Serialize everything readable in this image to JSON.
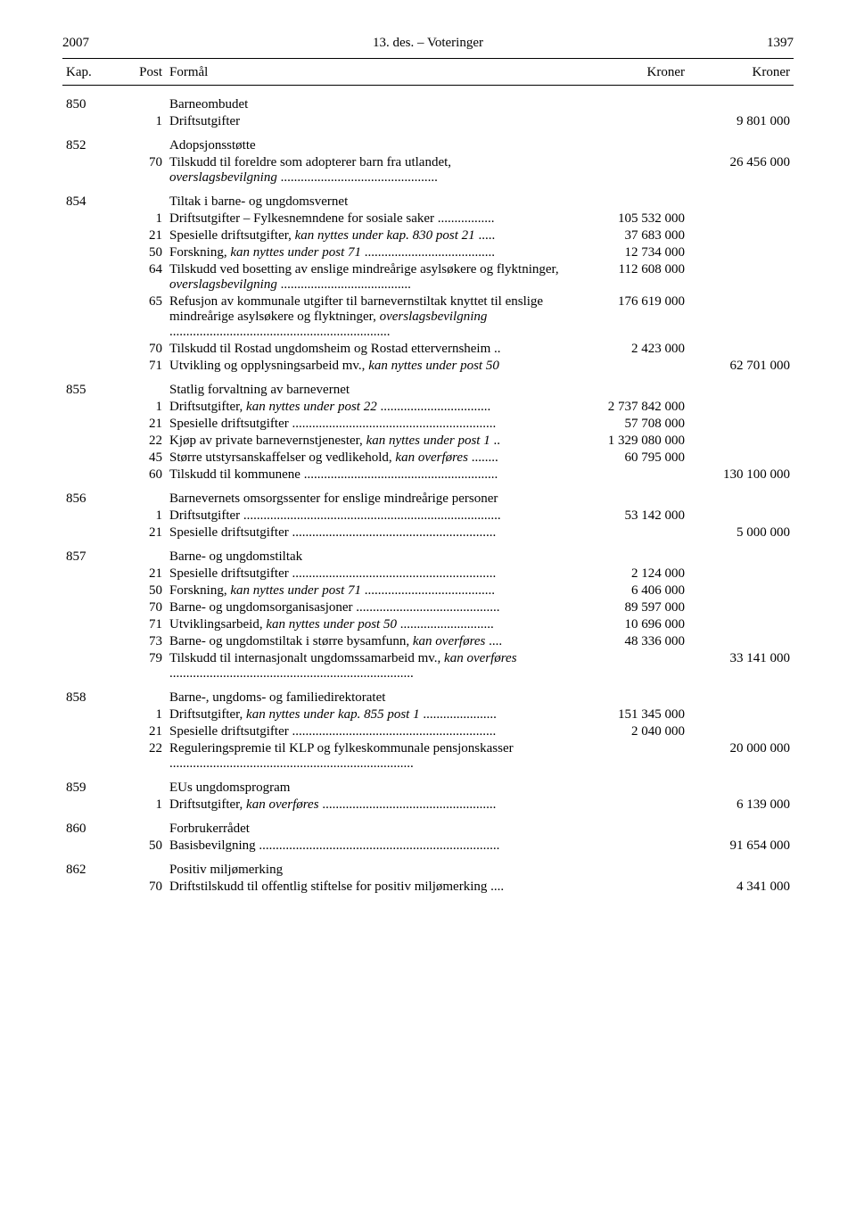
{
  "header": {
    "year": "2007",
    "center": "13. des. – Voteringer",
    "page_number": "1397"
  },
  "table": {
    "headers": {
      "kap": "Kap.",
      "post": "Post",
      "formal": "Formål",
      "kroner1": "Kroner",
      "kroner2": "Kroner"
    },
    "rows": [
      {
        "type": "chapter",
        "kap": "850",
        "title": "Barneombudet"
      },
      {
        "type": "item",
        "post": "1",
        "text": "Driftsutgifter",
        "kr1": "",
        "kr2": "9 801 000"
      },
      {
        "type": "chapter",
        "kap": "852",
        "title": "Adopsjonsstøtte"
      },
      {
        "type": "item",
        "post": "70",
        "text": "Tilskudd til foreldre som adopterer barn fra utlandet, ",
        "italic": "overslagsbevilgning",
        "trail": " ...............................................",
        "kr1": "",
        "kr2": "26 456 000"
      },
      {
        "type": "chapter",
        "kap": "854",
        "title": "Tiltak i barne- og ungdomsvernet"
      },
      {
        "type": "item",
        "post": "1",
        "text": "Driftsutgifter – Fylkesnemndene for sosiale saker .................",
        "kr1": "105 532 000",
        "kr2": ""
      },
      {
        "type": "item",
        "post": "21",
        "text": "Spesielle driftsutgifter, ",
        "italic": "kan nyttes under kap. 830 post 21",
        "trail": " .....",
        "kr1": "37 683 000",
        "kr2": ""
      },
      {
        "type": "item",
        "post": "50",
        "text": "Forskning, ",
        "italic": "kan nyttes under post 71",
        "trail": " .......................................",
        "kr1": "12 734 000",
        "kr2": ""
      },
      {
        "type": "item",
        "post": "64",
        "text": "Tilskudd ved bosetting av enslige mindreårige asylsøkere og flyktninger, ",
        "italic": "overslagsbevilgning",
        "trail": " .......................................",
        "kr1": "112 608 000",
        "kr2": ""
      },
      {
        "type": "item",
        "post": "65",
        "text": "Refusjon av kommunale utgifter til barnevernstiltak knyttet til enslige mindreårige asylsøkere og flyktninger, ",
        "italic": "overslagsbevilgning",
        "trail": " ..................................................................",
        "kr1": "176 619 000",
        "kr2": ""
      },
      {
        "type": "item",
        "post": "70",
        "text": "Tilskudd til Rostad ungdomsheim og Rostad ettervernsheim ..",
        "kr1": "2 423 000",
        "kr2": ""
      },
      {
        "type": "item",
        "post": "71",
        "text": "Utvikling og opplysningsarbeid mv., ",
        "italic": "kan nyttes under post 50",
        "kr1": "",
        "kr2": "62 701 000"
      },
      {
        "type": "chapter",
        "kap": "855",
        "title": "Statlig forvaltning av barnevernet"
      },
      {
        "type": "item",
        "post": "1",
        "text": "Driftsutgifter, ",
        "italic": "kan nyttes under post 22",
        "trail": " .................................",
        "kr1": "2 737 842 000",
        "kr2": ""
      },
      {
        "type": "item",
        "post": "21",
        "text": "Spesielle driftsutgifter .............................................................",
        "kr1": "57 708 000",
        "kr2": ""
      },
      {
        "type": "item",
        "post": "22",
        "text": "Kjøp av private barnevernstjenester, ",
        "italic": "kan nyttes under post 1",
        "trail": " ..",
        "kr1": "1 329 080 000",
        "kr2": ""
      },
      {
        "type": "item",
        "post": "45",
        "text": "Større utstyrsanskaffelser og vedlikehold, ",
        "italic": "kan overføres",
        "trail": " ........",
        "kr1": "60 795 000",
        "kr2": ""
      },
      {
        "type": "item",
        "post": "60",
        "text": "Tilskudd til kommunene ..........................................................",
        "kr1": "",
        "kr2": "130 100 000"
      },
      {
        "type": "chapter",
        "kap": "856",
        "title": "Barnevernets omsorgssenter for enslige mindreårige personer"
      },
      {
        "type": "item",
        "post": "1",
        "text": "Driftsutgifter .............................................................................",
        "kr1": "53 142 000",
        "kr2": ""
      },
      {
        "type": "item",
        "post": "21",
        "text": "Spesielle driftsutgifter .............................................................",
        "kr1": "",
        "kr2": "5 000 000"
      },
      {
        "type": "chapter",
        "kap": "857",
        "title": "Barne- og ungdomstiltak"
      },
      {
        "type": "item",
        "post": "21",
        "text": "Spesielle driftsutgifter .............................................................",
        "kr1": "2 124 000",
        "kr2": ""
      },
      {
        "type": "item",
        "post": "50",
        "text": "Forskning, ",
        "italic": "kan nyttes under post 71",
        "trail": " .......................................",
        "kr1": "6 406 000",
        "kr2": ""
      },
      {
        "type": "item",
        "post": "70",
        "text": "Barne- og ungdomsorganisasjoner ...........................................",
        "kr1": "89 597 000",
        "kr2": ""
      },
      {
        "type": "item",
        "post": "71",
        "text": "Utviklingsarbeid, ",
        "italic": "kan nyttes under post 50",
        "trail": " ............................",
        "kr1": "10 696 000",
        "kr2": ""
      },
      {
        "type": "item",
        "post": "73",
        "text": "Barne- og ungdomstiltak i større bysamfunn, ",
        "italic": "kan overføres",
        "trail": " ....",
        "kr1": "48 336 000",
        "kr2": ""
      },
      {
        "type": "item",
        "post": "79",
        "text": "Tilskudd til internasjonalt ungdomssamarbeid mv., ",
        "italic": "kan overføres",
        "trail": " .........................................................................",
        "kr1": "",
        "kr2": "33 141 000"
      },
      {
        "type": "chapter",
        "kap": "858",
        "title": "Barne-, ungdoms- og familiedirektoratet"
      },
      {
        "type": "item",
        "post": "1",
        "text": "Driftsutgifter, ",
        "italic": "kan nyttes under kap. 855 post 1",
        "trail": " ......................",
        "kr1": "151 345 000",
        "kr2": ""
      },
      {
        "type": "item",
        "post": "21",
        "text": "Spesielle driftsutgifter .............................................................",
        "kr1": "2 040 000",
        "kr2": ""
      },
      {
        "type": "item",
        "post": "22",
        "text": "Reguleringspremie til KLP og fylkeskommunale pensjonskasser .........................................................................",
        "kr1": "",
        "kr2": "20 000 000"
      },
      {
        "type": "chapter",
        "kap": "859",
        "title": "EUs ungdomsprogram"
      },
      {
        "type": "item",
        "post": "1",
        "text": "Driftsutgifter, ",
        "italic": "kan overføres",
        "trail": " ....................................................",
        "kr1": "",
        "kr2": "6 139 000"
      },
      {
        "type": "chapter",
        "kap": "860",
        "title": "Forbrukerrådet"
      },
      {
        "type": "item",
        "post": "50",
        "text": "Basisbevilgning ........................................................................",
        "kr1": "",
        "kr2": "91 654 000"
      },
      {
        "type": "chapter",
        "kap": "862",
        "title": "Positiv miljømerking"
      },
      {
        "type": "item",
        "post": "70",
        "text": "Driftstilskudd til offentlig stiftelse for positiv miljømerking ....",
        "kr1": "",
        "kr2": "4 341 000"
      }
    ]
  }
}
